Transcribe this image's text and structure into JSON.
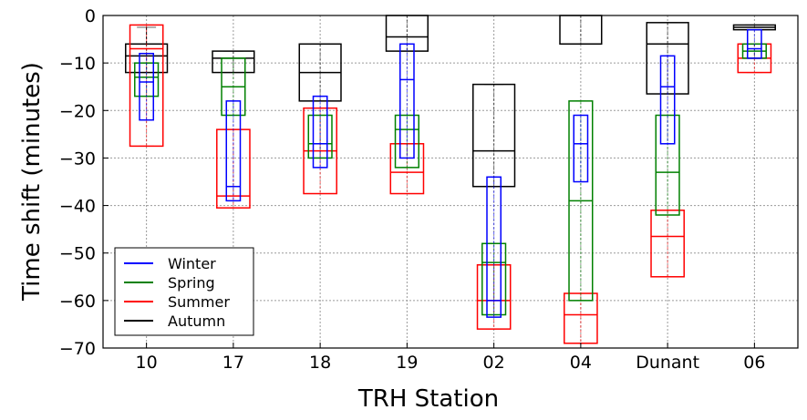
{
  "chart_data": {
    "type": "box",
    "xlabel": "TRH Station",
    "ylabel": "Time shift (minutes)",
    "ylim": [
      -70,
      0
    ],
    "yticks": [
      0,
      -10,
      -20,
      -30,
      -40,
      -50,
      -60,
      -70
    ],
    "grid": true,
    "legend_position": "lower-left",
    "categories": [
      "10",
      "17",
      "18",
      "19",
      "02",
      "04",
      "Dunant",
      "06"
    ],
    "series": [
      {
        "name": "Winter",
        "color": "#0000ff",
        "boxes": [
          {
            "q1": -22,
            "median": -14,
            "q3": -8,
            "whisker_low": -22,
            "whisker_high": -8
          },
          {
            "q1": -39,
            "median": -36,
            "q3": -18,
            "whisker_low": -39,
            "whisker_high": -18
          },
          {
            "q1": -32,
            "median": -27,
            "q3": -17,
            "whisker_low": -32,
            "whisker_high": -17
          },
          {
            "q1": -30,
            "median": -13.5,
            "q3": -6,
            "whisker_low": -30,
            "whisker_high": -6
          },
          {
            "q1": -63.5,
            "median": -60,
            "q3": -34,
            "whisker_low": -63.5,
            "whisker_high": -34
          },
          {
            "q1": -35,
            "median": -27,
            "q3": -21,
            "whisker_low": -35,
            "whisker_high": -21
          },
          {
            "q1": -27,
            "median": -15,
            "q3": -8.5,
            "whisker_low": -27,
            "whisker_high": -8.5
          },
          {
            "q1": -9,
            "median": -7,
            "q3": -3,
            "whisker_low": -9,
            "whisker_high": -3
          }
        ]
      },
      {
        "name": "Spring",
        "color": "#008000",
        "boxes": [
          {
            "q1": -17,
            "median": -13,
            "q3": -10,
            "whisker_low": -17,
            "whisker_high": -10
          },
          {
            "q1": -21,
            "median": -15,
            "q3": -9,
            "whisker_low": -21,
            "whisker_high": -9
          },
          {
            "q1": -30,
            "median": -27,
            "q3": -21,
            "whisker_low": -30,
            "whisker_high": -21
          },
          {
            "q1": -32,
            "median": -24,
            "q3": -21,
            "whisker_low": -32,
            "whisker_high": -21
          },
          {
            "q1": -63,
            "median": -52,
            "q3": -48,
            "whisker_low": -63,
            "whisker_high": -48
          },
          {
            "q1": -60,
            "median": -39,
            "q3": -18,
            "whisker_low": -60,
            "whisker_high": -18
          },
          {
            "q1": -42,
            "median": -33,
            "q3": -21,
            "whisker_low": -42,
            "whisker_high": -21
          },
          {
            "q1": -9,
            "median": -7.5,
            "q3": -6,
            "whisker_low": -9,
            "whisker_high": -6
          }
        ]
      },
      {
        "name": "Summer",
        "color": "#ff0000",
        "boxes": [
          {
            "q1": -27.5,
            "median": -7,
            "q3": -2,
            "whisker_low": -27.5,
            "whisker_high": -2
          },
          {
            "q1": -40.5,
            "median": -38,
            "q3": -24,
            "whisker_low": -40.5,
            "whisker_high": -24
          },
          {
            "q1": -37.5,
            "median": -28.5,
            "q3": -19.5,
            "whisker_low": -37.5,
            "whisker_high": -19.5
          },
          {
            "q1": -37.5,
            "median": -33,
            "q3": -27,
            "whisker_low": -37.5,
            "whisker_high": -27
          },
          {
            "q1": -66,
            "median": -60,
            "q3": -52.5,
            "whisker_low": -66,
            "whisker_high": -52.5
          },
          {
            "q1": -69,
            "median": -63,
            "q3": -58.5,
            "whisker_low": -69,
            "whisker_high": -58.5
          },
          {
            "q1": -55,
            "median": -46.5,
            "q3": -41,
            "whisker_low": -55,
            "whisker_high": -41
          },
          {
            "q1": -12,
            "median": -9,
            "q3": -6,
            "whisker_low": -12,
            "whisker_high": -6
          }
        ]
      },
      {
        "name": "Autumn",
        "color": "#000000",
        "boxes": [
          {
            "q1": -12,
            "median": -8.5,
            "q3": -6,
            "whisker_low": -12,
            "whisker_high": -2.5
          },
          {
            "q1": -12,
            "median": -9,
            "q3": -7.5,
            "whisker_low": -12,
            "whisker_high": -7.5
          },
          {
            "q1": -18,
            "median": -12,
            "q3": -6,
            "whisker_low": -18,
            "whisker_high": -6
          },
          {
            "q1": -7.5,
            "median": -4.5,
            "q3": 0,
            "whisker_low": -7.5,
            "whisker_high": 0
          },
          {
            "q1": -36,
            "median": -28.5,
            "q3": -14.5,
            "whisker_low": -36,
            "whisker_high": -14.5
          },
          {
            "q1": -6,
            "median": -6,
            "q3": 0,
            "whisker_low": -6,
            "whisker_high": 0
          },
          {
            "q1": -16.5,
            "median": -6,
            "q3": -1.5,
            "whisker_low": -16.5,
            "whisker_high": -1.5
          },
          {
            "q1": -3,
            "median": -2.5,
            "q3": -2,
            "whisker_low": -3,
            "whisker_high": -2
          }
        ]
      }
    ]
  }
}
